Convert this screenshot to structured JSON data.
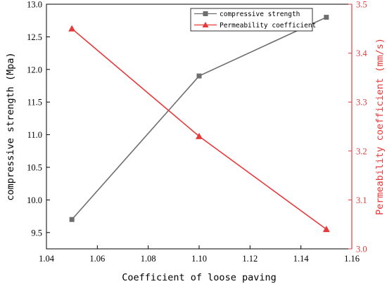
{
  "chart_data": {
    "type": "line",
    "xlabel": "Coefficient of loose paving",
    "x_ticks": [
      "1.04",
      "1.06",
      "1.08",
      "1.10",
      "1.12",
      "1.14",
      "1.16"
    ],
    "xlim": [
      1.04,
      1.16
    ],
    "left_axis": {
      "label": "compressive strength (Mpa)",
      "ylim": [
        9.25,
        13.0
      ],
      "ticks": [
        "9.5",
        "10.0",
        "10.5",
        "11.0",
        "11.5",
        "12.0",
        "12.5",
        "13.0"
      ],
      "color": "#000000"
    },
    "right_axis": {
      "label": "Permeability coefficient (mm/s)",
      "ylim": [
        3.0,
        3.5
      ],
      "ticks": [
        "3.0",
        "3.1",
        "3.2",
        "3.3",
        "3.4",
        "3.5"
      ],
      "color": "#e8393a"
    },
    "series": [
      {
        "name": "compressive strength",
        "axis": "left",
        "marker": "square",
        "color": "#6e6e6e",
        "x": [
          1.05,
          1.1,
          1.15
        ],
        "y": [
          9.7,
          11.9,
          12.8
        ]
      },
      {
        "name": "Permeability coefficient",
        "axis": "right",
        "marker": "triangle",
        "color": "#e8393a",
        "x": [
          1.05,
          1.1,
          1.15
        ],
        "y": [
          3.45,
          3.23,
          3.04
        ]
      }
    ],
    "legend_position": "top-right",
    "grid": false
  }
}
